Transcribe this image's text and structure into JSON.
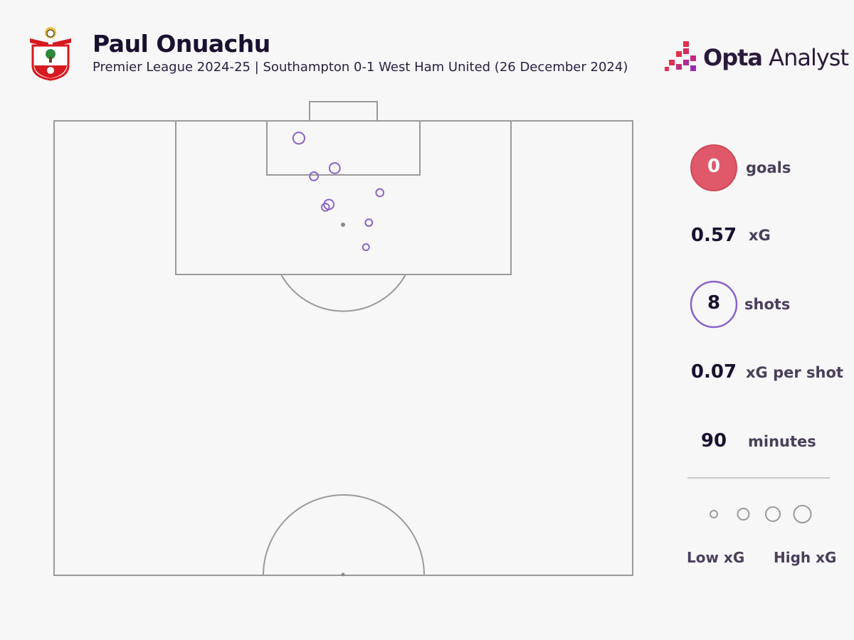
{
  "header": {
    "title": "Paul Onuachu",
    "subtitle": "Premier League 2024-25 | Southampton 0-1 West Ham United (26 December 2024)",
    "brand_bold": "Opta",
    "brand_light": " Analyst"
  },
  "stats": [
    {
      "value": "0",
      "label": "goals"
    },
    {
      "value": "0.57",
      "label": "xG"
    },
    {
      "value": "8",
      "label": "shots"
    },
    {
      "value": "0.07",
      "label": "xG per shot"
    },
    {
      "value": "90",
      "label": "minutes"
    }
  ],
  "legend": {
    "low": "Low xG",
    "high": "High xG",
    "sizes_xg": [
      0.02,
      0.08,
      0.14,
      0.2
    ]
  },
  "colors": {
    "shot": "#8b62c9",
    "goal_fill": "#e0596a",
    "goal_stroke": "#d04858",
    "pitch_line": "#9a9a9a",
    "background": "#f7f7f7"
  },
  "chart_data": {
    "type": "scatter",
    "shots": [
      {
        "x": 98.1,
        "y": 42.3,
        "xg": 0.16
      },
      {
        "x": 94.8,
        "y": 48.5,
        "xg": 0.12
      },
      {
        "x": 93.9,
        "y": 44.9,
        "xg": 0.06
      },
      {
        "x": 92.1,
        "y": 56.3,
        "xg": 0.04
      },
      {
        "x": 90.8,
        "y": 47.5,
        "xg": 0.1
      },
      {
        "x": 90.5,
        "y": 46.9,
        "xg": 0.04
      },
      {
        "x": 88.8,
        "y": 54.4,
        "xg": 0.03
      },
      {
        "x": 86.1,
        "y": 53.9,
        "xg": 0.02
      }
    ]
  }
}
